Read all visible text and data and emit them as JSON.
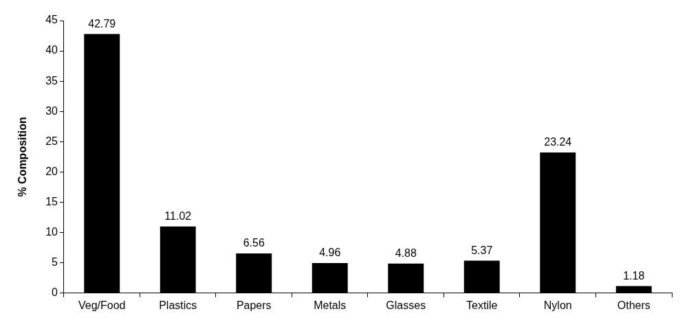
{
  "chart_data": {
    "type": "bar",
    "ylabel": "% Composition",
    "categories": [
      "Veg/Food",
      "Plastics",
      "Papers",
      "Metals",
      "Glasses",
      "Textile",
      "Nylon",
      "Others"
    ],
    "values": [
      42.79,
      11.02,
      6.56,
      4.96,
      4.88,
      5.37,
      23.24,
      1.18
    ],
    "color": "#000000",
    "ylim": [
      0,
      45
    ],
    "yticks": [
      0,
      5,
      10,
      15,
      20,
      25,
      30,
      35,
      40,
      45
    ],
    "grid": false,
    "legend": false,
    "data_labels": true
  }
}
